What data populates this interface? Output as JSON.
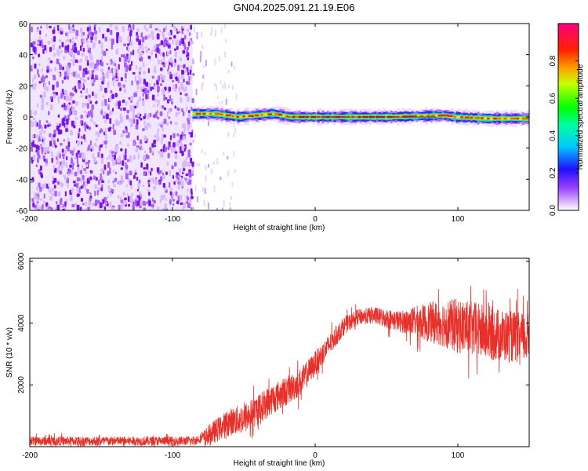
{
  "title": "GN04.2025.091.21.19.E06",
  "chart_data": [
    {
      "type": "heatmap",
      "xlabel": "Height of straight line (km)",
      "ylabel": "Frequency (Hz)",
      "xlim": [
        -200,
        150
      ],
      "ylim": [
        -60,
        60
      ],
      "x_ticks": [
        "-200",
        "-100",
        "0",
        "100"
      ],
      "y_ticks": [
        "-60",
        "-40",
        "-20",
        "0",
        "20",
        "40",
        "60"
      ],
      "colorbar": {
        "label": "Normalized spectral amplitude",
        "range": [
          0,
          1
        ],
        "ticks": [
          "0.0",
          "0.2",
          "0.4",
          "0.6",
          "0.8"
        ]
      },
      "noise_region_x": [
        -200,
        -86
      ],
      "sparse_noise_x": [
        -86,
        -55
      ],
      "signal_band": {
        "x_start": -86,
        "x_end": 150,
        "center_freq_hz": [
          [
            -86,
            2
          ],
          [
            -70,
            2
          ],
          [
            -55,
            0
          ],
          [
            -30,
            2
          ],
          [
            -18,
            0
          ],
          [
            0,
            0
          ],
          [
            50,
            0
          ],
          [
            90,
            1
          ],
          [
            97,
            0
          ],
          [
            120,
            -1
          ],
          [
            150,
            -1
          ]
        ]
      },
      "colors": [
        "#ffffff",
        "#d9b3ff",
        "#8000ff",
        "#0000ff",
        "#00ffff",
        "#00ff00",
        "#ffff00",
        "#ff8000",
        "#ff0000",
        "#ff0080"
      ]
    },
    {
      "type": "line",
      "xlabel": "Height of straight line (km)",
      "ylabel": "SNR (10 * v/v)",
      "xlim": [
        -200,
        150
      ],
      "ylim": [
        0,
        6100
      ],
      "x_ticks": [
        "-200",
        "-100",
        "0",
        "100"
      ],
      "y_ticks": [
        "2000",
        "4000",
        "6000"
      ],
      "series": [
        {
          "color": "#e8302a",
          "trend": [
            [
              -200,
              180
            ],
            [
              -100,
              180
            ],
            [
              -85,
              190
            ],
            [
              -75,
              350
            ],
            [
              -60,
              800
            ],
            [
              -50,
              900
            ],
            [
              -40,
              1200
            ],
            [
              -30,
              1550
            ],
            [
              -20,
              1800
            ],
            [
              -10,
              2100
            ],
            [
              0,
              2700
            ],
            [
              10,
              3300
            ],
            [
              20,
              3900
            ],
            [
              30,
              4200
            ],
            [
              40,
              4250
            ],
            [
              50,
              4150
            ],
            [
              60,
              4050
            ],
            [
              70,
              4050
            ],
            [
              90,
              4000
            ],
            [
              110,
              3800
            ],
            [
              130,
              3600
            ],
            [
              150,
              3500
            ]
          ],
          "spread": [
            [
              -200,
              150
            ],
            [
              -80,
              150
            ],
            [
              -75,
              350
            ],
            [
              -50,
              500
            ],
            [
              -30,
              500
            ],
            [
              -10,
              450
            ],
            [
              10,
              350
            ],
            [
              30,
              250
            ],
            [
              60,
              350
            ],
            [
              80,
              650
            ],
            [
              100,
              900
            ],
            [
              120,
              900
            ],
            [
              150,
              800
            ]
          ]
        }
      ]
    }
  ]
}
